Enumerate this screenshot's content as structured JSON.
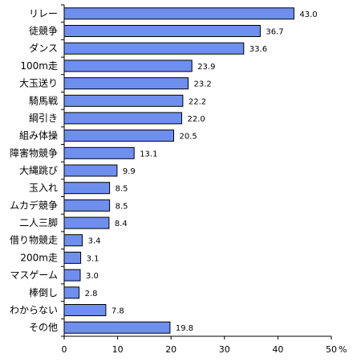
{
  "chart_data": {
    "type": "bar",
    "orientation": "horizontal",
    "categories": [
      "リレー",
      "徒競争",
      "ダンス",
      "100m走",
      "大玉送り",
      "騎馬戦",
      "綱引き",
      "組み体操",
      "障害物競争",
      "大縄跳び",
      "玉入れ",
      "ムカデ競争",
      "二人三脚",
      "借り物競走",
      "200m走",
      "マスゲーム",
      "棒倒し",
      "わからない",
      "その他"
    ],
    "values": [
      43.0,
      36.7,
      33.6,
      23.9,
      23.2,
      22.2,
      22.0,
      20.5,
      13.1,
      9.9,
      8.5,
      8.5,
      8.4,
      3.4,
      3.1,
      3.0,
      2.8,
      7.8,
      19.8
    ],
    "value_labels": [
      "43.0",
      "36.7",
      "33.6",
      "23.9",
      "23.2",
      "22.2",
      "22.0",
      "20.5",
      "13.1",
      "9.9",
      "8.5",
      "8.5",
      "8.4",
      "3.4",
      "3.1",
      "3.0",
      "2.8",
      "7.8",
      "19.8"
    ],
    "x_ticks": [
      "0",
      "10",
      "20",
      "30",
      "40",
      "50"
    ],
    "unit": "%",
    "xlim": [
      0,
      50
    ],
    "bar_color": "#6f8fef",
    "bar_edge_color": "#000000",
    "grid": false,
    "legend": false
  }
}
